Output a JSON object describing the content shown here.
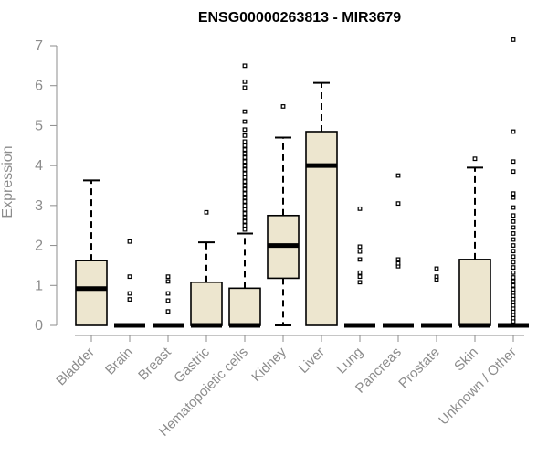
{
  "chart_data": {
    "type": "boxplot",
    "title": "ENSG00000263813 - MIR3679",
    "xlabel": "",
    "ylabel": "Expression",
    "ylim": [
      0,
      7
    ],
    "yticks": [
      "0",
      "1",
      "2",
      "3",
      "4",
      "5",
      "6",
      "7"
    ],
    "box_fill": "#ede6cf",
    "categories": [
      "Bladder",
      "Brain",
      "Breast",
      "Gastric",
      "Hematopoietic cells",
      "Kidney",
      "Liver",
      "Lung",
      "Pancreas",
      "Prostate",
      "Skin",
      "Unknown / Other"
    ],
    "boxes": [
      {
        "min": 0,
        "q1": 0,
        "median": 0.92,
        "q3": 1.62,
        "max": 3.63,
        "outliers": []
      },
      {
        "min": 0,
        "q1": 0,
        "median": 0,
        "q3": 0,
        "max": 0,
        "outliers": [
          0.65,
          0.8,
          1.22,
          2.1
        ]
      },
      {
        "min": 0,
        "q1": 0,
        "median": 0,
        "q3": 0,
        "max": 0,
        "outliers": [
          0.35,
          0.62,
          0.8,
          1.1,
          1.22
        ]
      },
      {
        "min": 0,
        "q1": 0,
        "median": 0,
        "q3": 1.08,
        "max": 2.08,
        "outliers": [
          2.83
        ]
      },
      {
        "min": 0,
        "q1": 0,
        "median": 0,
        "q3": 0.93,
        "max": 2.3,
        "outliers": [
          2.4,
          2.5,
          2.6,
          2.7,
          2.8,
          2.9,
          3.0,
          3.1,
          3.2,
          3.3,
          3.4,
          3.5,
          3.6,
          3.7,
          3.8,
          3.9,
          4.0,
          4.1,
          4.2,
          4.3,
          4.4,
          4.5,
          4.6,
          4.75,
          4.9,
          5.1,
          5.35,
          5.95,
          6.1,
          6.5
        ]
      },
      {
        "min": 0,
        "q1": 1.18,
        "median": 2.0,
        "q3": 2.75,
        "max": 4.7,
        "outliers": [
          5.48
        ]
      },
      {
        "min": 0,
        "q1": 0,
        "median": 4.0,
        "q3": 4.85,
        "max": 6.07,
        "outliers": []
      },
      {
        "min": 0,
        "q1": 0,
        "median": 0,
        "q3": 0,
        "max": 0,
        "outliers": [
          1.08,
          1.22,
          1.32,
          1.65,
          1.85,
          1.97,
          2.92
        ]
      },
      {
        "min": 0,
        "q1": 0,
        "median": 0,
        "q3": 0,
        "max": 0,
        "outliers": [
          1.48,
          1.55,
          1.65,
          3.05,
          3.75
        ]
      },
      {
        "min": 0,
        "q1": 0,
        "median": 0,
        "q3": 0,
        "max": 0,
        "outliers": [
          1.15,
          1.22,
          1.42
        ]
      },
      {
        "min": 0,
        "q1": 0,
        "median": 0,
        "q3": 1.65,
        "max": 3.95,
        "outliers": [
          4.17
        ]
      },
      {
        "min": 0,
        "q1": 0,
        "median": 0,
        "q3": 0,
        "max": 0,
        "outliers": [
          0.1,
          0.18,
          0.26,
          0.34,
          0.42,
          0.5,
          0.58,
          0.66,
          0.74,
          0.82,
          0.9,
          1.0,
          1.1,
          1.2,
          1.32,
          1.45,
          1.58,
          1.72,
          1.86,
          2.0,
          2.15,
          2.3,
          2.45,
          2.6,
          2.75,
          2.95,
          3.2,
          3.3,
          3.85,
          4.1,
          4.85,
          7.15
        ]
      }
    ]
  }
}
